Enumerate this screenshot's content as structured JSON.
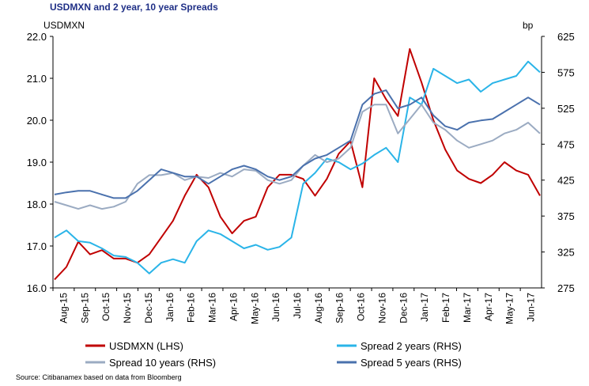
{
  "title": "USDMXN and  2 year, 10 year Spreads",
  "source": "Source: Citibanamex based on data from Bloomberg",
  "chart_data": {
    "type": "line",
    "title": "USDMXN and  2 year, 10 year Spreads",
    "left_axis": {
      "label": "USDMXN",
      "min": 16.0,
      "max": 22.0,
      "ticks": [
        "16.0",
        "17.0",
        "18.0",
        "19.0",
        "20.0",
        "21.0",
        "22.0"
      ]
    },
    "right_axis": {
      "label": "bp",
      "min": 275,
      "max": 625,
      "ticks": [
        "275",
        "325",
        "375",
        "425",
        "475",
        "525",
        "575",
        "625"
      ]
    },
    "x_labels": [
      "Aug-15",
      "Sep-15",
      "Oct-15",
      "Nov-15",
      "Dec-15",
      "Jan-16",
      "Feb-16",
      "Mar-16",
      "Apr-16",
      "May-16",
      "Jun-16",
      "Jul-16",
      "Aug-16",
      "Sep-16",
      "Oct-16",
      "Nov-16",
      "Dec-16",
      "Jan-17",
      "Feb-17",
      "Mar-17",
      "Apr-17",
      "May-17",
      "Jun-17"
    ],
    "legend": [
      {
        "key": "usdmxn",
        "label": "USDMXN (LHS)",
        "color": "#c00000"
      },
      {
        "key": "spread2",
        "label": "Spread 2 years (RHS)",
        "color": "#2ab4e8"
      },
      {
        "key": "spread10",
        "label": "Spread 10 years (RHS)",
        "color": "#9babc2"
      },
      {
        "key": "spread5",
        "label": "Spread 5 years (RHS)",
        "color": "#4a71ad"
      }
    ],
    "series": [
      {
        "name": "USDMXN (LHS)",
        "key": "usdmxn",
        "axis": "left",
        "color": "#c00000",
        "values": [
          16.2,
          16.5,
          17.1,
          16.8,
          16.9,
          16.7,
          16.7,
          16.6,
          16.8,
          17.2,
          17.6,
          18.2,
          18.7,
          18.4,
          17.7,
          17.3,
          17.6,
          17.7,
          18.4,
          18.7,
          18.7,
          18.6,
          18.2,
          18.6,
          19.2,
          19.5,
          18.4,
          21.0,
          20.5,
          20.1,
          21.7,
          20.9,
          20.0,
          19.3,
          18.8,
          18.6,
          18.5,
          18.7,
          19.0,
          18.8,
          18.7,
          18.2
        ]
      },
      {
        "name": "Spread 2 years (RHS)",
        "key": "spread2",
        "axis": "right",
        "color": "#2ab4e8",
        "values": [
          345,
          355,
          340,
          338,
          330,
          320,
          318,
          310,
          295,
          310,
          315,
          310,
          340,
          355,
          350,
          340,
          330,
          335,
          328,
          332,
          345,
          420,
          435,
          455,
          450,
          440,
          448,
          460,
          470,
          450,
          540,
          530,
          580,
          570,
          560,
          565,
          548,
          560,
          565,
          570,
          590,
          575
        ]
      },
      {
        "name": "Spread 10 years (RHS)",
        "key": "spread10",
        "axis": "right",
        "color": "#9babc2",
        "values": [
          395,
          390,
          385,
          390,
          385,
          388,
          395,
          420,
          432,
          432,
          435,
          425,
          430,
          428,
          435,
          430,
          440,
          438,
          425,
          420,
          425,
          445,
          460,
          450,
          455,
          470,
          520,
          530,
          530,
          490,
          510,
          530,
          505,
          495,
          480,
          470,
          475,
          480,
          490,
          495,
          505,
          490
        ]
      },
      {
        "name": "Spread 5 years (RHS)",
        "key": "spread5",
        "axis": "right",
        "color": "#4a71ad",
        "values": [
          405,
          408,
          410,
          410,
          405,
          400,
          400,
          410,
          425,
          440,
          435,
          430,
          430,
          420,
          430,
          440,
          445,
          440,
          430,
          425,
          430,
          445,
          455,
          460,
          470,
          480,
          530,
          545,
          550,
          525,
          530,
          540,
          515,
          500,
          495,
          505,
          508,
          510,
          520,
          530,
          540,
          530
        ]
      }
    ]
  }
}
